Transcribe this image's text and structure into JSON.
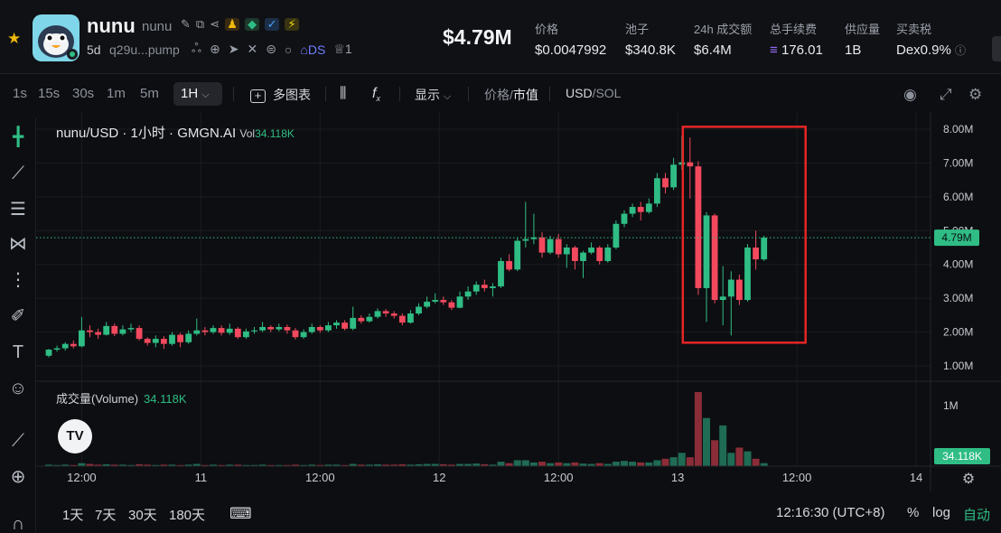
{
  "header": {
    "token_name": "nunu",
    "token_symbol": "nunu",
    "age": "5d",
    "address": "q29u...pump",
    "ds_label": "DS",
    "crown_count": "1",
    "market_cap": "$4.79M",
    "stats": [
      {
        "label": "价格",
        "value": "$0.0047992"
      },
      {
        "label": "池子",
        "value": "$340.8K"
      },
      {
        "label": "24h 成交额",
        "value": "$6.4M"
      },
      {
        "label": "总手续费",
        "value": "176.01"
      },
      {
        "label": "供应量",
        "value": "1B"
      },
      {
        "label": "买卖税",
        "value": "Dex0.9%"
      }
    ],
    "colors": {
      "star": "#f0b90b",
      "up": "#2fbd85",
      "down": "#f2495e",
      "highlight_box": "#e52626"
    }
  },
  "toolbar": {
    "timeframes": [
      "1s",
      "15s",
      "30s",
      "1m",
      "5m"
    ],
    "active_timeframe": "1H",
    "multi_chart": "多图表",
    "display": "显示",
    "price_label": "价格",
    "slash": "/",
    "mcap_label": "市值",
    "usd_label": "USD",
    "sol_label": "SOL",
    "icons": [
      "indicator-icon",
      "fx-icon",
      "camera-icon",
      "fullscreen-icon",
      "settings-icon"
    ]
  },
  "tools": [
    "crosshair-icon",
    "trendline-icon",
    "fib-icon",
    "pattern-icon",
    "measure-lines-icon",
    "brush-icon",
    "text-icon",
    "emoji-icon",
    "ruler-icon",
    "zoom-icon",
    "magnet-icon"
  ],
  "chart": {
    "legend_title": "nunu/USD · 1小时 · GMGN.AI",
    "vol_label": "Vol",
    "vol_value": "34.118K",
    "volume_label": "成交量(Volume)",
    "volume_value": "34.118K",
    "tv_logo": "TV"
  },
  "chart_data": {
    "type": "candlestick",
    "unit": "market cap (USD)",
    "y_ticks": [
      "8.00M",
      "7.00M",
      "6.00M",
      "5.00M",
      "4.00M",
      "3.00M",
      "2.00M",
      "1.00M"
    ],
    "y_tick_values": [
      8,
      7,
      6,
      5,
      4,
      3,
      2,
      1
    ],
    "ylim": [
      0.6,
      8.4
    ],
    "current_value_label": "4.79M",
    "current_value": 4.79,
    "x_ticks": [
      "12:00",
      "11",
      "12:00",
      "12",
      "12:00",
      "13",
      "12:00",
      "14"
    ],
    "volume_y_tick": "1M",
    "volume_current_label": "34.118K",
    "candles": [
      [
        1.3,
        1.48,
        1.25,
        1.5
      ],
      [
        1.48,
        1.52,
        1.42,
        1.6
      ],
      [
        1.52,
        1.65,
        1.45,
        1.7
      ],
      [
        1.65,
        1.58,
        1.52,
        1.75
      ],
      [
        1.58,
        2.05,
        1.55,
        2.45
      ],
      [
        2.05,
        2.0,
        1.85,
        2.2
      ],
      [
        2.0,
        1.92,
        1.8,
        2.1
      ],
      [
        1.92,
        2.18,
        1.9,
        2.3
      ],
      [
        2.18,
        1.95,
        1.88,
        2.25
      ],
      [
        1.95,
        2.08,
        1.9,
        2.2
      ],
      [
        2.08,
        2.12,
        2.0,
        2.25
      ],
      [
        2.12,
        1.8,
        1.75,
        2.2
      ],
      [
        1.8,
        1.68,
        1.6,
        1.85
      ],
      [
        1.68,
        1.8,
        1.55,
        1.9
      ],
      [
        1.8,
        1.65,
        1.5,
        1.88
      ],
      [
        1.65,
        1.92,
        1.6,
        2.0
      ],
      [
        1.92,
        1.7,
        1.55,
        1.98
      ],
      [
        1.7,
        1.95,
        1.65,
        2.05
      ],
      [
        1.95,
        2.05,
        1.9,
        2.4
      ],
      [
        2.05,
        2.0,
        1.9,
        2.15
      ],
      [
        2.0,
        2.12,
        1.95,
        2.2
      ],
      [
        2.12,
        1.98,
        1.9,
        2.2
      ],
      [
        1.98,
        2.1,
        1.92,
        2.25
      ],
      [
        2.1,
        1.85,
        1.8,
        2.15
      ],
      [
        1.85,
        2.02,
        1.8,
        2.1
      ],
      [
        2.02,
        2.05,
        1.95,
        2.15
      ],
      [
        2.05,
        2.15,
        2.0,
        2.3
      ],
      [
        2.15,
        2.08,
        2.0,
        2.2
      ],
      [
        2.08,
        2.15,
        2.02,
        2.25
      ],
      [
        2.15,
        2.05,
        1.95,
        2.22
      ],
      [
        2.05,
        1.85,
        1.78,
        2.12
      ],
      [
        1.85,
        2.0,
        1.8,
        2.08
      ],
      [
        2.0,
        2.15,
        1.95,
        2.25
      ],
      [
        2.15,
        2.05,
        1.98,
        2.2
      ],
      [
        2.05,
        2.2,
        2.0,
        2.3
      ],
      [
        2.2,
        2.28,
        2.1,
        2.35
      ],
      [
        2.28,
        2.1,
        2.05,
        2.35
      ],
      [
        2.1,
        2.42,
        2.05,
        2.75
      ],
      [
        2.42,
        2.32,
        2.25,
        2.5
      ],
      [
        2.32,
        2.45,
        2.28,
        2.55
      ],
      [
        2.45,
        2.62,
        2.4,
        2.7
      ],
      [
        2.62,
        2.55,
        2.45,
        2.68
      ],
      [
        2.55,
        2.48,
        2.4,
        2.62
      ],
      [
        2.48,
        2.28,
        2.2,
        2.55
      ],
      [
        2.28,
        2.55,
        2.25,
        2.65
      ],
      [
        2.55,
        2.75,
        2.5,
        2.85
      ],
      [
        2.75,
        2.9,
        2.7,
        3.05
      ],
      [
        2.9,
        2.95,
        2.85,
        3.15
      ],
      [
        2.95,
        2.88,
        2.8,
        3.05
      ],
      [
        2.88,
        2.72,
        2.65,
        2.95
      ],
      [
        2.72,
        3.05,
        2.7,
        3.2
      ],
      [
        3.05,
        3.2,
        2.95,
        3.35
      ],
      [
        3.2,
        3.4,
        3.1,
        3.5
      ],
      [
        3.4,
        3.3,
        3.2,
        3.55
      ],
      [
        3.3,
        3.35,
        3.05,
        3.45
      ],
      [
        3.35,
        4.1,
        3.3,
        4.2
      ],
      [
        4.1,
        3.85,
        3.8,
        4.3
      ],
      [
        3.85,
        4.7,
        3.8,
        4.8
      ],
      [
        4.7,
        4.75,
        4.5,
        5.85
      ],
      [
        4.75,
        4.8,
        4.6,
        5.5
      ],
      [
        4.8,
        4.35,
        4.2,
        4.95
      ],
      [
        4.35,
        4.75,
        4.3,
        4.85
      ],
      [
        4.75,
        4.3,
        4.2,
        4.9
      ],
      [
        4.3,
        4.5,
        3.9,
        4.6
      ],
      [
        4.5,
        4.1,
        3.85,
        4.55
      ],
      [
        4.1,
        4.35,
        3.6,
        4.4
      ],
      [
        4.35,
        4.5,
        4.3,
        4.65
      ],
      [
        4.5,
        4.1,
        4.0,
        4.55
      ],
      [
        4.1,
        4.5,
        4.05,
        4.6
      ],
      [
        4.5,
        5.2,
        4.45,
        5.3
      ],
      [
        5.2,
        5.5,
        5.1,
        5.6
      ],
      [
        5.5,
        5.7,
        5.4,
        5.8
      ],
      [
        5.7,
        5.55,
        5.3,
        5.85
      ],
      [
        5.55,
        5.8,
        5.5,
        5.95
      ],
      [
        5.8,
        6.55,
        5.7,
        6.7
      ],
      [
        6.55,
        6.28,
        6.1,
        6.7
      ],
      [
        6.28,
        6.95,
        6.2,
        7.15
      ],
      [
        6.95,
        7.02,
        6.8,
        7.8
      ],
      [
        7.02,
        6.9,
        5.95,
        7.75
      ],
      [
        6.9,
        3.3,
        3.1,
        7.05
      ],
      [
        3.3,
        5.45,
        2.3,
        5.55
      ],
      [
        5.45,
        2.95,
        2.85,
        5.5
      ],
      [
        2.95,
        3.05,
        2.2,
        3.95
      ],
      [
        3.05,
        3.55,
        1.9,
        3.8
      ],
      [
        3.55,
        2.95,
        2.8,
        3.7
      ],
      [
        2.95,
        4.5,
        2.9,
        4.6
      ],
      [
        4.5,
        4.15,
        3.85,
        5.0
      ],
      [
        4.15,
        4.79,
        4.1,
        4.85
      ]
    ],
    "volumes": [
      0.02,
      0.015,
      0.02,
      0.015,
      0.04,
      0.03,
      0.02,
      0.025,
      0.02,
      0.02,
      0.015,
      0.025,
      0.02,
      0.015,
      0.02,
      0.02,
      0.015,
      0.02,
      0.03,
      0.015,
      0.02,
      0.015,
      0.02,
      0.02,
      0.015,
      0.015,
      0.02,
      0.015,
      0.015,
      0.015,
      0.02,
      0.015,
      0.02,
      0.015,
      0.02,
      0.02,
      0.015,
      0.03,
      0.02,
      0.02,
      0.025,
      0.02,
      0.02,
      0.025,
      0.02,
      0.025,
      0.03,
      0.03,
      0.025,
      0.02,
      0.03,
      0.03,
      0.035,
      0.025,
      0.02,
      0.06,
      0.04,
      0.08,
      0.08,
      0.05,
      0.06,
      0.04,
      0.05,
      0.04,
      0.05,
      0.035,
      0.03,
      0.04,
      0.03,
      0.06,
      0.07,
      0.06,
      0.05,
      0.05,
      0.08,
      0.1,
      0.12,
      0.18,
      0.12,
      1.0,
      0.65,
      0.35,
      0.55,
      0.18,
      0.25,
      0.2,
      0.1,
      0.04
    ],
    "highlight": {
      "from_index": 78,
      "to_index": 87
    }
  },
  "footer": {
    "ranges": [
      "1天",
      "7天",
      "30天",
      "180天"
    ],
    "time": "12:16:30 (UTC+8)",
    "percent": "%",
    "log": "log",
    "auto": "自动"
  }
}
